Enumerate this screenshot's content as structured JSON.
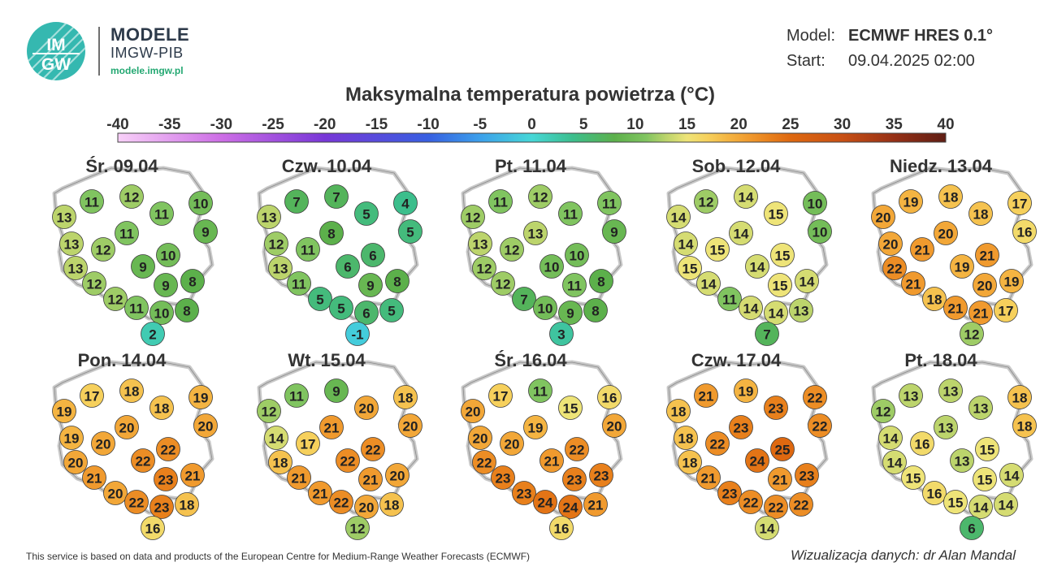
{
  "brand": {
    "title": "MODELE",
    "subtitle": "IMGW-PIB",
    "url": "modele.imgw.pl",
    "logo_text_top": "IM",
    "logo_text_bottom": "GW"
  },
  "meta": {
    "model_label": "Model:",
    "model_value": "ECMWF HRES 0.1°",
    "start_label": "Start:",
    "start_value": "09.04.2025 02:00"
  },
  "title": "Maksymalna temperatura powietrza (°C)",
  "scale": {
    "ticks": [
      "-40",
      "-35",
      "-30",
      "-25",
      "-20",
      "-15",
      "-10",
      "-5",
      "0",
      "5",
      "10",
      "15",
      "20",
      "25",
      "30",
      "35",
      "40"
    ],
    "min": -40,
    "max": 40
  },
  "days": [
    {
      "label": "Śr. 09.04",
      "values": [
        11,
        12,
        10,
        13,
        11,
        11,
        9,
        13,
        12,
        13,
        9,
        10,
        12,
        9,
        8,
        12,
        11,
        10,
        8,
        2
      ]
    },
    {
      "label": "Czw. 10.04",
      "values": [
        7,
        7,
        4,
        13,
        5,
        8,
        5,
        12,
        11,
        13,
        6,
        6,
        11,
        9,
        8,
        5,
        5,
        6,
        5,
        -1
      ]
    },
    {
      "label": "Pt. 11.04",
      "values": [
        11,
        12,
        11,
        12,
        11,
        13,
        9,
        13,
        12,
        12,
        10,
        10,
        12,
        11,
        8,
        7,
        10,
        9,
        8,
        3
      ]
    },
    {
      "label": "Sob. 12.04",
      "values": [
        12,
        14,
        10,
        14,
        15,
        14,
        10,
        14,
        15,
        15,
        14,
        15,
        14,
        15,
        14,
        11,
        14,
        14,
        13,
        7
      ]
    },
    {
      "label": "Niedz. 13.04",
      "values": [
        19,
        18,
        17,
        20,
        18,
        20,
        16,
        20,
        21,
        22,
        19,
        21,
        21,
        20,
        19,
        18,
        21,
        21,
        17,
        12
      ]
    },
    {
      "label": "Pon. 14.04",
      "values": [
        17,
        18,
        19,
        19,
        18,
        20,
        20,
        19,
        20,
        20,
        22,
        22,
        21,
        23,
        21,
        20,
        22,
        23,
        18,
        16
      ]
    },
    {
      "label": "Wt. 15.04",
      "values": [
        11,
        9,
        18,
        12,
        20,
        21,
        20,
        14,
        17,
        18,
        22,
        22,
        21,
        21,
        20,
        21,
        22,
        20,
        18,
        12
      ]
    },
    {
      "label": "Śr. 16.04",
      "values": [
        17,
        11,
        16,
        20,
        15,
        19,
        20,
        20,
        20,
        22,
        21,
        22,
        23,
        23,
        23,
        23,
        24,
        24,
        21,
        16
      ]
    },
    {
      "label": "Czw. 17.04",
      "values": [
        21,
        19,
        22,
        18,
        23,
        23,
        22,
        18,
        22,
        18,
        24,
        25,
        21,
        21,
        23,
        23,
        22,
        22,
        22,
        14
      ]
    },
    {
      "label": "Pt. 18.04",
      "values": [
        13,
        13,
        18,
        12,
        13,
        13,
        18,
        14,
        16,
        14,
        13,
        15,
        15,
        15,
        14,
        16,
        15,
        14,
        14,
        6
      ]
    }
  ],
  "footer": "This service is based on data and products of the European Centre for Medium-Range Weather Forecasts (ECMWF)",
  "credit": "Wizualizacja danych: dr Alan Mandal"
}
